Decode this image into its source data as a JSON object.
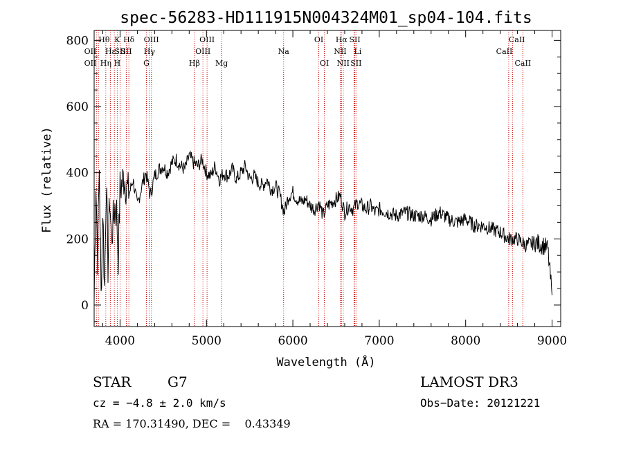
{
  "chart_data": {
    "type": "line",
    "title": "spec-56283-HD111915N004324M01_sp04-104.fits",
    "xlabel": "Wavelength (Å)",
    "ylabel": "Flux (relative)",
    "xlim": [
      3700,
      9100
    ],
    "ylim": [
      -65,
      830
    ],
    "x_ticks": [
      4000,
      5000,
      6000,
      7000,
      8000,
      9000
    ],
    "y_ticks": [
      0,
      200,
      400,
      600,
      800
    ],
    "series": [
      {
        "name": "flux",
        "x": [
          3700,
          3720,
          3740,
          3760,
          3780,
          3800,
          3820,
          3840,
          3860,
          3880,
          3900,
          3920,
          3940,
          3960,
          3980,
          4000,
          4050,
          4100,
          4150,
          4200,
          4250,
          4300,
          4350,
          4400,
          4450,
          4500,
          4550,
          4600,
          4650,
          4700,
          4750,
          4800,
          4850,
          4900,
          4950,
          5000,
          5050,
          5100,
          5150,
          5200,
          5250,
          5300,
          5350,
          5400,
          5450,
          5500,
          5550,
          5600,
          5650,
          5700,
          5750,
          5800,
          5850,
          5900,
          5950,
          6000,
          6050,
          6100,
          6150,
          6200,
          6250,
          6300,
          6350,
          6400,
          6450,
          6500,
          6550,
          6600,
          6650,
          6700,
          6750,
          6800,
          6850,
          6900,
          6950,
          7000,
          7100,
          7200,
          7300,
          7400,
          7500,
          7600,
          7700,
          7800,
          7900,
          8000,
          8100,
          8200,
          8300,
          8400,
          8500,
          8600,
          8700,
          8800,
          8900,
          8950,
          9000
        ],
        "y": [
          10,
          380,
          150,
          420,
          20,
          300,
          50,
          380,
          120,
          330,
          200,
          250,
          300,
          280,
          150,
          350,
          390,
          330,
          380,
          300,
          360,
          400,
          330,
          390,
          410,
          420,
          400,
          430,
          440,
          420,
          410,
          450,
          430,
          420,
          440,
          400,
          390,
          420,
          380,
          400,
          390,
          410,
          380,
          400,
          420,
          380,
          390,
          370,
          360,
          380,
          350,
          360,
          330,
          280,
          330,
          340,
          320,
          310,
          320,
          300,
          290,
          310,
          270,
          300,
          310,
          320,
          330,
          280,
          300,
          290,
          310,
          300,
          290,
          300,
          280,
          290,
          280,
          270,
          280,
          270,
          270,
          260,
          280,
          260,
          250,
          260,
          240,
          240,
          230,
          220,
          200,
          200,
          180,
          190,
          180,
          170,
          30
        ]
      }
    ],
    "spectral_lines": [
      {
        "label": "OII",
        "x": 3727,
        "row": 2,
        "align": "end"
      },
      {
        "label": "Hθ",
        "x": 3750,
        "row": 1,
        "align": "start"
      },
      {
        "label": "OII",
        "x": 3727,
        "row": 3,
        "align": "end"
      },
      {
        "label": "Hη",
        "x": 3835,
        "row": 3,
        "align": "middle"
      },
      {
        "label": "Hε",
        "x": 3889,
        "row": 2,
        "align": "middle"
      },
      {
        "label": "K",
        "x": 3934,
        "row": 1,
        "align": "start"
      },
      {
        "label": "SII",
        "x": 4000,
        "row": 2,
        "align": "middle"
      },
      {
        "label": "H",
        "x": 3968,
        "row": 3,
        "align": "middle"
      },
      {
        "label": "Hδ",
        "x": 4102,
        "row": 1,
        "align": "middle"
      },
      {
        "label": "SII",
        "x": 4072,
        "row": 2,
        "align": "middle"
      },
      {
        "label": "OIII",
        "x": 4363,
        "row": 1,
        "align": "middle"
      },
      {
        "label": "Hγ",
        "x": 4340,
        "row": 2,
        "align": "middle"
      },
      {
        "label": "G",
        "x": 4305,
        "row": 3,
        "align": "middle"
      },
      {
        "label": "Hβ",
        "x": 4861,
        "row": 3,
        "align": "middle"
      },
      {
        "label": "OIII",
        "x": 5007,
        "row": 1,
        "align": "middle"
      },
      {
        "label": "OIII",
        "x": 4959,
        "row": 2,
        "align": "middle"
      },
      {
        "label": "Mg",
        "x": 5175,
        "row": 3,
        "align": "middle"
      },
      {
        "label": "Na",
        "x": 5893,
        "row": 2,
        "align": "middle"
      },
      {
        "label": "OI",
        "x": 6300,
        "row": 1,
        "align": "middle"
      },
      {
        "label": "OI",
        "x": 6364,
        "row": 3,
        "align": "middle"
      },
      {
        "label": "Hα",
        "x": 6563,
        "row": 1,
        "align": "middle"
      },
      {
        "label": "NII",
        "x": 6548,
        "row": 2,
        "align": "middle"
      },
      {
        "label": "NII",
        "x": 6583,
        "row": 3,
        "align": "middle"
      },
      {
        "label": "SII",
        "x": 6717,
        "row": 1,
        "align": "middle"
      },
      {
        "label": "Li",
        "x": 6708,
        "row": 2,
        "align": "start"
      },
      {
        "label": "SII",
        "x": 6731,
        "row": 3,
        "align": "middle"
      },
      {
        "label": "CaII",
        "x": 8498,
        "row": 1,
        "align": "start"
      },
      {
        "label": "CaII",
        "x": 8542,
        "row": 2,
        "align": "end"
      },
      {
        "label": "CaII",
        "x": 8662,
        "row": 3,
        "align": "middle"
      }
    ],
    "colors": {
      "line_marker": "#cc0000",
      "spectrum": "#000000",
      "axes": "#000000"
    }
  },
  "info": {
    "object_class": "STAR",
    "subclass": "G7",
    "survey": "LAMOST DR3",
    "cz": "cz = −4.8 ± 2.0 km/s",
    "obs_date": "Obs−Date: 20121221",
    "radec": "RA = 170.31490, DEC =    0.43349"
  }
}
